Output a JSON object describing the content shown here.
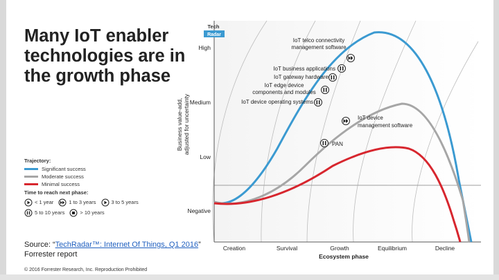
{
  "slide": {
    "title": "Many IoT enabler technologies are in the growth phase",
    "source_prefix": "Source: “",
    "source_link": "TechRadar™: Internet Of Things, Q1 2016",
    "source_suffix": "” Forrester report",
    "copyright": "© 2016 Forrester Research, Inc. Reproduction Prohibited"
  },
  "radar": {
    "logo_line1": "Tech",
    "logo_line2": "Radar",
    "y_axis_title_line1": "Business value-add,",
    "y_axis_title_line2": "adjusted for uncertainty",
    "y_levels": [
      "High",
      "Medium",
      "Low",
      "Negative"
    ],
    "x_axis_title": "Ecosystem phase",
    "x_phases": [
      "Creation",
      "Survival",
      "Growth",
      "Equilibrium",
      "Decline"
    ],
    "technologies": [
      {
        "label1": "IoT telco connectivity",
        "label2": "management software",
        "time": "1 to 3 years"
      },
      {
        "label1": "IoT business applications",
        "label2": "",
        "time": "5 to 10 years"
      },
      {
        "label1": "IoT gateway hardware",
        "label2": "",
        "time": "5 to 10 years"
      },
      {
        "label1": "IoT edge device",
        "label2": "components and modules",
        "time": "5 to 10 years"
      },
      {
        "label1": "IoT device operating systems",
        "label2": "",
        "time": "5 to 10 years"
      },
      {
        "label1": "IoT device",
        "label2": "management software",
        "time": "1 to 3 years"
      },
      {
        "label1": "PAN",
        "label2": "",
        "time": "5 to 10 years"
      }
    ]
  },
  "legend": {
    "trajectory_title": "Trajectory:",
    "trajectories": [
      {
        "label": "Significant success",
        "color": "#3b9ad1"
      },
      {
        "label": "Moderate success",
        "color": "#a6a6a6"
      },
      {
        "label": "Minimal success",
        "color": "#d7262e"
      }
    ],
    "time_title": "Time to reach next phase:",
    "times": [
      {
        "label": "< 1 year",
        "icon": "play"
      },
      {
        "label": "1 to 3 years",
        "icon": "fast-forward"
      },
      {
        "label": "3 to 5 years",
        "icon": "play"
      },
      {
        "label": "5 to 10 years",
        "icon": "pause"
      },
      {
        "label": "> 10 years",
        "icon": "stop"
      }
    ]
  }
}
